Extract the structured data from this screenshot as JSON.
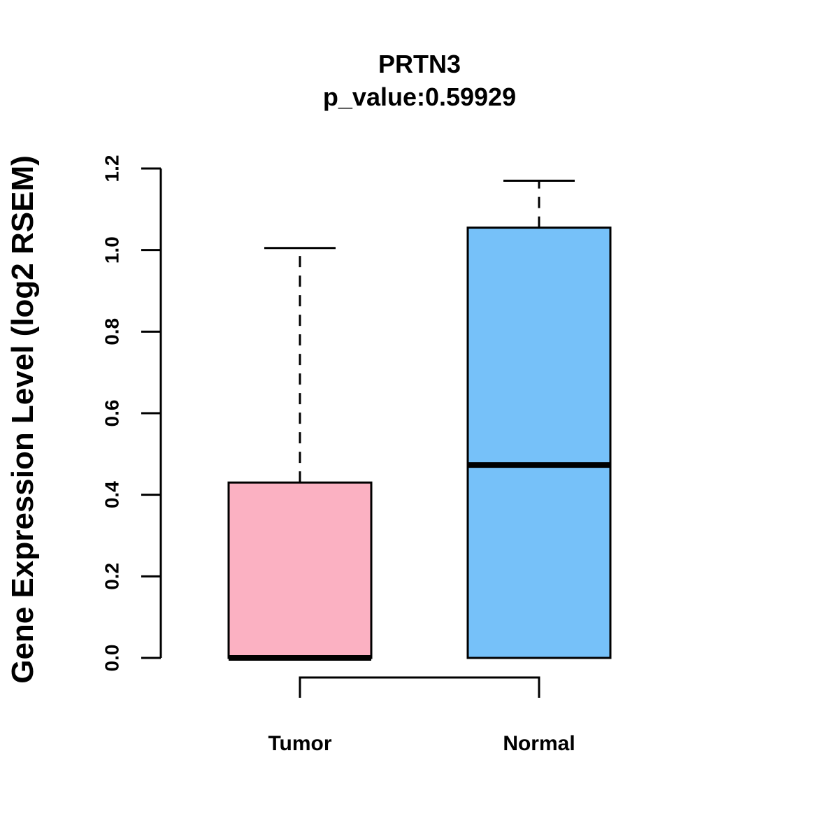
{
  "chart_data": {
    "type": "box",
    "title": "PRTN3",
    "subtitle": "p_value:0.59929",
    "xlabel": "",
    "ylabel": "Gene Expression Level (log2 RSEM)",
    "ylim": [
      0,
      1.2
    ],
    "yticks": [
      "0.0",
      "0.2",
      "0.4",
      "0.6",
      "0.8",
      "1.0",
      "1.2"
    ],
    "yticks_values": [
      0,
      0.2,
      0.4,
      0.6,
      0.8,
      1.0,
      1.2
    ],
    "grid": false,
    "categories": [
      "Tumor",
      "Normal"
    ],
    "boxes": [
      {
        "category": "Tumor",
        "color": "#FBB1C2",
        "whisker_low": 0.0,
        "q1": 0.0,
        "median": 0.0,
        "q3": 0.43,
        "whisker_high": 1.005
      },
      {
        "category": "Normal",
        "color": "#76C1F9",
        "whisker_low": 0.0,
        "q1": 0.0,
        "median": 0.473,
        "q3": 1.055,
        "whisker_high": 1.17
      }
    ],
    "significance_bracket": {
      "from": "Tumor",
      "to": "Normal",
      "label": ""
    }
  }
}
